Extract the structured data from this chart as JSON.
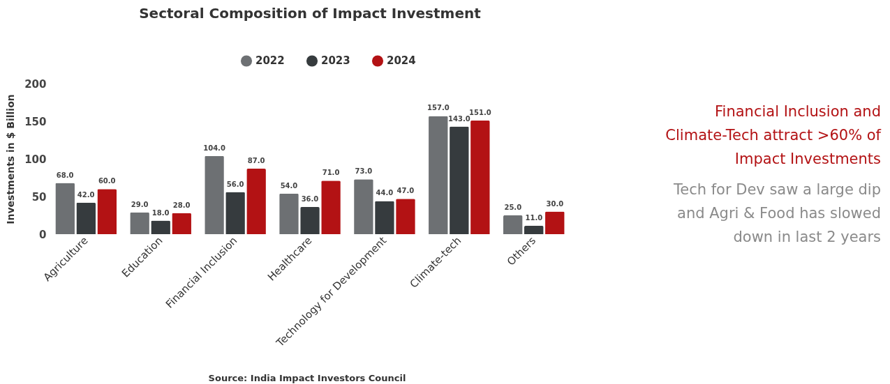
{
  "chart_data": {
    "type": "bar",
    "title": "Sectoral Composition of Impact Investment",
    "ylabel": "Investments in $ Billion",
    "categories": [
      "Agriculture",
      "Education",
      "Financial Inclusion",
      "Healthcare",
      "Technology for Development",
      "Climate-tech",
      "Others"
    ],
    "series": [
      {
        "name": "2022",
        "color": "#6d7073",
        "values": [
          68,
          29,
          104,
          54,
          73,
          157,
          25
        ],
        "value_labels": [
          "68.0",
          "29.0",
          "104.0",
          "54.0",
          "73.0",
          "157.0",
          "25.0"
        ]
      },
      {
        "name": "2023",
        "color": "#363b3e",
        "values": [
          42,
          18,
          56,
          36,
          44,
          143,
          11
        ],
        "value_labels": [
          "42.0",
          "18.0",
          "56.0",
          "36.0",
          "44.0",
          "143.0",
          "11.0"
        ]
      },
      {
        "name": "2024",
        "color": "#b31214",
        "values": [
          60,
          28,
          87,
          71,
          47,
          151,
          30
        ],
        "value_labels": [
          "60.0",
          "28.0",
          "87.0",
          "71.0",
          "47.0",
          "151.0",
          "30.0"
        ]
      }
    ],
    "ylim": [
      0,
      200
    ],
    "yticks": [
      0,
      50,
      100,
      150,
      200
    ],
    "grid": false,
    "legend": "top",
    "annotations": [
      "Financial Inclusion and Climate-Tech attract >60% of Impact Investments",
      "Tech for Dev saw a large dip and Agri & Food has slowed down in last 2 years",
      "Source: India Impact Investors Council"
    ]
  }
}
